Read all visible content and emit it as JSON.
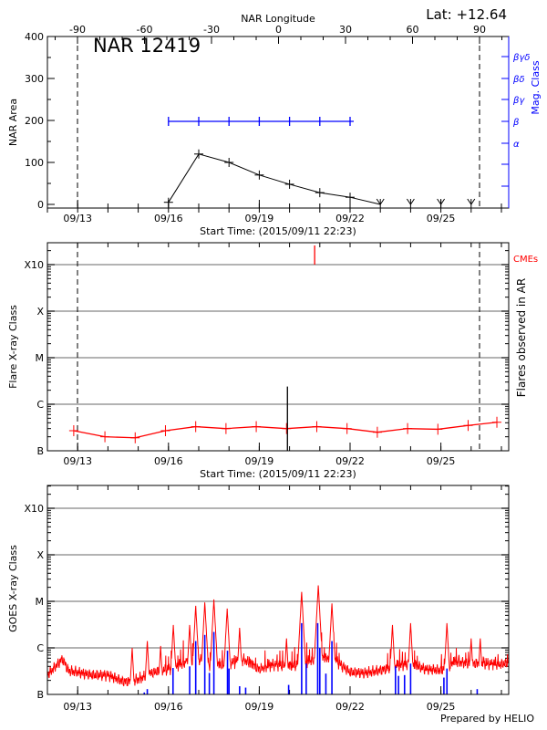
{
  "header": {
    "lat_label": "Lat: +12.64",
    "longitude_axis_label": "NAR Longitude",
    "region_title": "NAR 12419",
    "footer": "Prepared by HELIO"
  },
  "colors": {
    "area": "#000000",
    "mag_class": "#0000ff",
    "flares": "#ff0000",
    "cme": "#ff0000",
    "goes": "#ff0000",
    "goes_ar_flares": "#0000ff",
    "grid": "#9a9a9a"
  },
  "chart_data": [
    {
      "type": "line",
      "panel": "top",
      "title": "NAR 12419",
      "xlabel": "Start Time: (2015/09/11 22:23)",
      "ylabel": "NAR Area",
      "y2label": "Mag. Class",
      "top_axis_label": "NAR Longitude",
      "top_axis_ticks": [
        "-90",
        "-60",
        "-30",
        "0",
        "30",
        "60",
        "90"
      ],
      "top_axis_values": [
        -90,
        -60,
        -30,
        0,
        30,
        60,
        90
      ],
      "xlim_days_sep": [
        12.0,
        27.25
      ],
      "x_ticks": [
        "09/13",
        "09/16",
        "09/19",
        "09/22",
        "09/25"
      ],
      "x_tick_days": [
        13,
        16,
        19,
        22,
        25
      ],
      "ylim": [
        0,
        400
      ],
      "y_ticks": [
        "0",
        "100",
        "200",
        "300",
        "400"
      ],
      "y_tick_values": [
        0,
        100,
        200,
        300,
        400
      ],
      "limb_longitudes": [
        -90,
        90
      ],
      "area_series": {
        "days": [
          16,
          17,
          18,
          19,
          20,
          21,
          22,
          23
        ],
        "values": [
          5,
          120,
          100,
          70,
          48,
          28,
          17,
          0
        ]
      },
      "area_below_limit_days": [
        23,
        24,
        25,
        26
      ],
      "mag_class_axis": [
        "",
        "",
        "α",
        "β",
        "βγ",
        "βδ",
        "βγδ"
      ],
      "mag_class_series": {
        "days": [
          16,
          17,
          18,
          19,
          20,
          21,
          22
        ],
        "values": [
          "β",
          "β",
          "β",
          "β",
          "β",
          "β",
          "β"
        ]
      }
    },
    {
      "type": "line",
      "panel": "middle",
      "xlabel": "Start Time: (2015/09/11 22:23)",
      "ylabel": "Flare X-ray Class",
      "y2label": "Flares observed in AR",
      "cme_label": "CMEs",
      "y_scale": "log",
      "ylim_wm2": [
        1e-07,
        3e-05
      ],
      "y_ticks": [
        "B",
        "C",
        "M",
        "X",
        "X10"
      ],
      "y_tick_values": [
        1e-07,
        1e-06,
        1e-05,
        0.0001,
        0.001
      ],
      "x_ticks": [
        "09/13",
        "09/16",
        "09/19",
        "09/22",
        "09/25"
      ],
      "background_flux": {
        "days": [
          12.87,
          13.9,
          14.9,
          15.9,
          16.9,
          17.9,
          18.9,
          19.9,
          20.9,
          21.9,
          22.9,
          23.9,
          24.9,
          25.9,
          26.85
        ],
        "values": [
          2.7e-07,
          2e-07,
          1.9e-07,
          2.7e-07,
          3.3e-07,
          3e-07,
          3.3e-07,
          3e-07,
          3.3e-07,
          3e-07,
          2.5e-07,
          3e-07,
          2.9e-07,
          3.5e-07,
          4.1e-07
        ]
      },
      "flares": [
        {
          "day": 19.93,
          "peak": 2.4e-06
        }
      ],
      "cmes": [
        {
          "day": 20.83
        }
      ]
    },
    {
      "type": "line",
      "panel": "bottom",
      "ylabel": "GOES X-ray Class",
      "y_scale": "log",
      "ylim_wm2": [
        1e-07,
        3e-05
      ],
      "y_ticks": [
        "B",
        "C",
        "M",
        "X",
        "X10"
      ],
      "y_tick_values": [
        1e-07,
        1e-06,
        1e-05,
        0.0001,
        0.001
      ],
      "x_ticks": [
        "09/13",
        "09/16",
        "09/19",
        "09/22",
        "09/25"
      ],
      "goes_baseline": {
        "days": [
          12.0,
          12.5,
          12.7,
          13.0,
          13.5,
          14.0,
          14.5,
          14.8,
          15.2,
          15.5,
          16.0,
          16.5,
          17.0,
          17.5,
          18.0,
          18.5,
          19.0,
          19.5,
          20.0,
          20.5,
          21.0,
          21.5,
          22.0,
          22.5,
          23.0,
          23.5,
          24.0,
          24.5,
          25.0,
          25.5,
          26.0,
          26.5,
          27.0,
          27.5
        ],
        "values": [
          2.6e-07,
          5.8e-07,
          3.2e-07,
          3e-07,
          2.6e-07,
          2.6e-07,
          1.9e-07,
          1.9e-07,
          2.4e-07,
          3e-07,
          3.5e-07,
          4.6e-07,
          5.5e-07,
          4e-07,
          4.6e-07,
          5.5e-07,
          3.5e-07,
          4.4e-07,
          4e-07,
          4.6e-07,
          6.4e-07,
          5.5e-07,
          3e-07,
          2.9e-07,
          3.3e-07,
          4e-07,
          4.6e-07,
          3.5e-07,
          3.3e-07,
          5e-07,
          4.6e-07,
          4.6e-07,
          4.4e-07,
          5.5e-07
        ]
      },
      "goes_peaks": [
        {
          "day": 14.8,
          "peak": 1e-06
        },
        {
          "day": 15.3,
          "peak": 1.4e-06
        },
        {
          "day": 15.74,
          "peak": 1.1e-06
        },
        {
          "day": 16.16,
          "peak": 3.1e-06
        },
        {
          "day": 16.7,
          "peak": 3.1e-06
        },
        {
          "day": 16.9,
          "peak": 8e-06
        },
        {
          "day": 17.2,
          "peak": 9.5e-06
        },
        {
          "day": 17.5,
          "peak": 1.1e-05
        },
        {
          "day": 17.94,
          "peak": 7e-06
        },
        {
          "day": 18.35,
          "peak": 2.7e-06
        },
        {
          "day": 19.9,
          "peak": 1.6e-06
        },
        {
          "day": 20.4,
          "peak": 1.6e-05
        },
        {
          "day": 20.95,
          "peak": 2.2e-05
        },
        {
          "day": 21.4,
          "peak": 9e-06
        },
        {
          "day": 23.4,
          "peak": 3.1e-06
        },
        {
          "day": 24.0,
          "peak": 3.4e-06
        },
        {
          "day": 25.2,
          "peak": 3.4e-06
        },
        {
          "day": 26.0,
          "peak": 1.6e-06
        },
        {
          "day": 26.3,
          "peak": 1.6e-06
        }
      ],
      "ar_flares": [
        {
          "day": 15.2,
          "peak": 1.1e-07
        },
        {
          "day": 15.3,
          "peak": 1.3e-07
        },
        {
          "day": 16.15,
          "peak": 3.7e-07
        },
        {
          "day": 16.7,
          "peak": 4e-07
        },
        {
          "day": 16.9,
          "peak": 1.4e-06
        },
        {
          "day": 17.2,
          "peak": 1.9e-06
        },
        {
          "day": 17.35,
          "peak": 2.9e-07
        },
        {
          "day": 17.5,
          "peak": 2.2e-06
        },
        {
          "day": 17.95,
          "peak": 8.7e-07
        },
        {
          "day": 18.0,
          "peak": 3.6e-07
        },
        {
          "day": 18.35,
          "peak": 1.5e-07
        },
        {
          "day": 18.55,
          "peak": 1.4e-07
        },
        {
          "day": 19.97,
          "peak": 1.6e-07
        },
        {
          "day": 20.4,
          "peak": 3.4e-06
        },
        {
          "day": 20.55,
          "peak": 4.6e-07
        },
        {
          "day": 20.93,
          "peak": 3.4e-06
        },
        {
          "day": 21.0,
          "peak": 1e-06
        },
        {
          "day": 21.2,
          "peak": 2.8e-07
        },
        {
          "day": 21.4,
          "peak": 1.4e-06
        },
        {
          "day": 23.5,
          "peak": 4e-07
        },
        {
          "day": 23.6,
          "peak": 2.5e-07
        },
        {
          "day": 23.8,
          "peak": 2.6e-07
        },
        {
          "day": 24.0,
          "peak": 4.6e-07
        },
        {
          "day": 25.1,
          "peak": 2.3e-07
        },
        {
          "day": 25.2,
          "peak": 3.6e-07
        },
        {
          "day": 26.2,
          "peak": 1.3e-07
        }
      ]
    }
  ]
}
